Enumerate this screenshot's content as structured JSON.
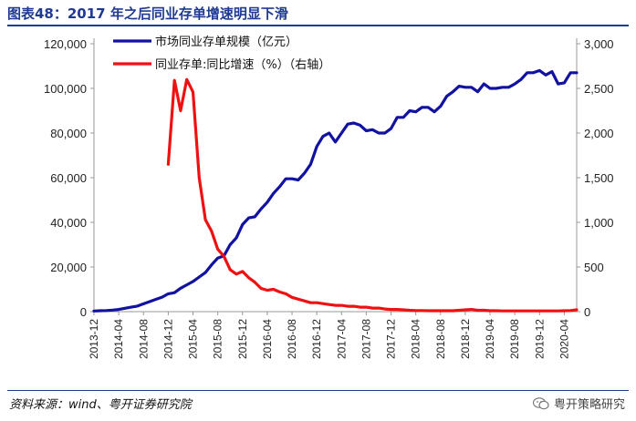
{
  "header": {
    "title": "图表48：2017 年之后同业存单增速明显下滑"
  },
  "footer": {
    "source": "资料来源：wind、粤开证券研究院",
    "watermark": "粤开策略研究",
    "watermark_icon": "wechat-icon"
  },
  "colors": {
    "title": "#1f3a93",
    "series1": "#1212a0",
    "series2": "#ee1111"
  },
  "chart_data": {
    "type": "line",
    "title": "",
    "xlabel": "",
    "ylabel": "",
    "x_tick_labels": [
      "2013-12",
      "2014-04",
      "2014-08",
      "2014-12",
      "2015-04",
      "2015-08",
      "2015-12",
      "2016-04",
      "2016-08",
      "2016-12",
      "2017-04",
      "2017-08",
      "2017-12",
      "2018-04",
      "2018-08",
      "2018-12",
      "2019-04",
      "2019-08",
      "2019-12",
      "2020-04"
    ],
    "ylim_left": [
      0,
      120000
    ],
    "yticks_left": [
      "0",
      "20,000",
      "40,000",
      "60,000",
      "80,000",
      "100,000",
      "120,000"
    ],
    "ylim_right": [
      0,
      3000
    ],
    "yticks_right": [
      "0",
      "500",
      "1,000",
      "1,500",
      "2,000",
      "2,500",
      "3,000"
    ],
    "legend_position": "top-left",
    "grid": false,
    "series": [
      {
        "name": "市场同业存单规模（亿元）",
        "axis": "left",
        "x": [
          "2013-12",
          "2014-01",
          "2014-02",
          "2014-03",
          "2014-04",
          "2014-05",
          "2014-06",
          "2014-07",
          "2014-08",
          "2014-09",
          "2014-10",
          "2014-11",
          "2014-12",
          "2015-01",
          "2015-02",
          "2015-03",
          "2015-04",
          "2015-05",
          "2015-06",
          "2015-07",
          "2015-08",
          "2015-09",
          "2015-10",
          "2015-11",
          "2015-12",
          "2016-01",
          "2016-02",
          "2016-03",
          "2016-04",
          "2016-05",
          "2016-06",
          "2016-07",
          "2016-08",
          "2016-09",
          "2016-10",
          "2016-11",
          "2016-12",
          "2017-01",
          "2017-02",
          "2017-03",
          "2017-04",
          "2017-05",
          "2017-06",
          "2017-07",
          "2017-08",
          "2017-09",
          "2017-10",
          "2017-11",
          "2017-12",
          "2018-01",
          "2018-02",
          "2018-03",
          "2018-04",
          "2018-05",
          "2018-06",
          "2018-07",
          "2018-08",
          "2018-09",
          "2018-10",
          "2018-11",
          "2018-12",
          "2019-01",
          "2019-02",
          "2019-03",
          "2019-04",
          "2019-05",
          "2019-06",
          "2019-07",
          "2019-08",
          "2019-09",
          "2019-10",
          "2019-11",
          "2019-12",
          "2020-01",
          "2020-02",
          "2020-03",
          "2020-04",
          "2020-05",
          "2020-06"
        ],
        "values": [
          300,
          400,
          500,
          700,
          1000,
          1500,
          2000,
          2500,
          3500,
          4500,
          5500,
          6500,
          8000,
          8500,
          10500,
          12000,
          13500,
          15500,
          17500,
          21000,
          24000,
          25000,
          30000,
          33000,
          39000,
          42000,
          42500,
          46000,
          49000,
          53000,
          56000,
          59500,
          59500,
          59000,
          62000,
          66000,
          74000,
          78500,
          80000,
          76000,
          80000,
          84000,
          84500,
          83500,
          81000,
          81500,
          80000,
          80000,
          82000,
          87000,
          87000,
          90000,
          89500,
          91500,
          91500,
          89500,
          92000,
          96500,
          98500,
          101000,
          100500,
          100500,
          98500,
          102000,
          100000,
          100000,
          100500,
          100500,
          102000,
          104000,
          107000,
          107000,
          108000,
          106000,
          107500,
          102000,
          102500,
          107000,
          107000
        ],
        "color": "#1212a0"
      },
      {
        "name": "同业存单:同比增速（%）（右轴）",
        "axis": "right",
        "x": [
          "2014-12",
          "2015-01",
          "2015-02",
          "2015-03",
          "2015-04",
          "2015-05",
          "2015-06",
          "2015-07",
          "2015-08",
          "2015-09",
          "2015-10",
          "2015-11",
          "2015-12",
          "2016-01",
          "2016-02",
          "2016-03",
          "2016-04",
          "2016-05",
          "2016-06",
          "2016-07",
          "2016-08",
          "2016-09",
          "2016-10",
          "2016-11",
          "2016-12",
          "2017-01",
          "2017-02",
          "2017-03",
          "2017-04",
          "2017-05",
          "2017-06",
          "2017-07",
          "2017-08",
          "2017-09",
          "2017-10",
          "2017-11",
          "2017-12",
          "2018-01",
          "2018-02",
          "2018-03",
          "2018-04",
          "2018-05",
          "2018-06",
          "2018-07",
          "2018-08",
          "2018-09",
          "2018-10",
          "2018-11",
          "2018-12",
          "2019-01",
          "2019-02",
          "2019-03",
          "2019-04",
          "2019-05",
          "2019-06",
          "2019-07",
          "2019-08",
          "2019-09",
          "2019-10",
          "2019-11",
          "2019-12",
          "2020-01",
          "2020-02",
          "2020-03",
          "2020-04",
          "2020-05",
          "2020-06"
        ],
        "values": [
          1650,
          2590,
          2250,
          2600,
          2460,
          1500,
          1030,
          900,
          700,
          620,
          470,
          420,
          450,
          380,
          330,
          260,
          240,
          250,
          220,
          200,
          160,
          140,
          120,
          100,
          100,
          90,
          80,
          70,
          70,
          60,
          60,
          50,
          50,
          40,
          40,
          30,
          25,
          25,
          20,
          15,
          12,
          12,
          10,
          10,
          10,
          10,
          10,
          15,
          20,
          25,
          15,
          15,
          10,
          10,
          8,
          8,
          8,
          8,
          8,
          8,
          8,
          8,
          8,
          8,
          10,
          12,
          20
        ],
        "color": "#ee1111"
      }
    ]
  }
}
